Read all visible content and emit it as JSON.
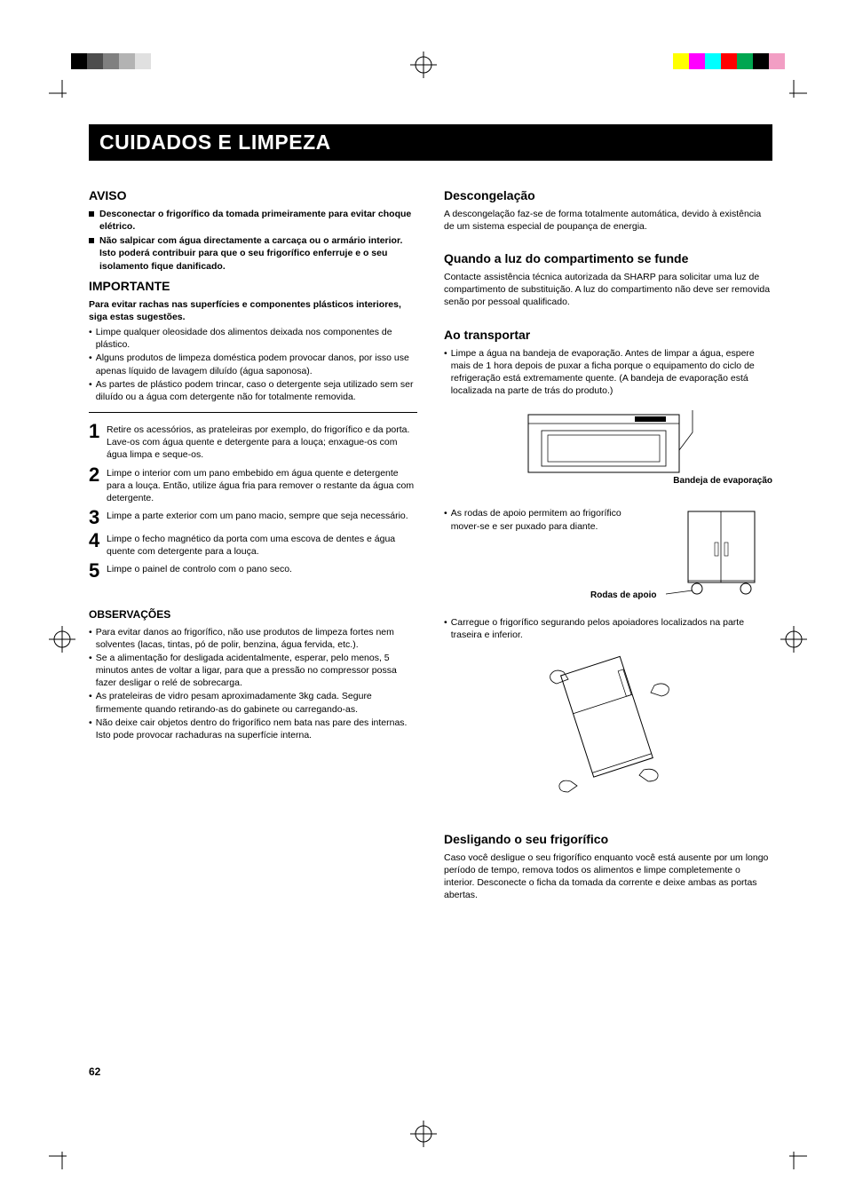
{
  "swatches_left": [
    "#000000",
    "#4d4d4d",
    "#808080",
    "#b3b3b3",
    "#e0e0e0"
  ],
  "swatches_right": [
    "#ffff00",
    "#ff00ff",
    "#00ffff",
    "#ff0000",
    "#00a650",
    "#000000",
    "#f29ec4"
  ],
  "title": "CUIDADOS E LIMPEZA",
  "page_number": "62",
  "left": {
    "aviso": {
      "heading": "AVISO",
      "items": [
        "Desconectar o frigorífico da tomada primeiramente para evitar choque elétrico.",
        "Não salpicar com água directamente a carcaça ou o armário interior. Isto poderá contribuir para que o seu frigorífico enferruje e o seu isolamento fique danificado."
      ]
    },
    "importante": {
      "heading": "IMPORTANTE",
      "intro": "Para evitar rachas nas superfícies e componentes plásticos interiores, siga estas sugestões.",
      "bullets": [
        "Limpe qualquer oleosidade dos alimentos deixada nos componentes de plástico.",
        "Alguns produtos de limpeza doméstica podem provocar danos, por isso use apenas líquido de lavagem diluído (água saponosa).",
        "As partes de plástico podem trincar, caso o detergente seja utilizado sem ser diluído ou a água com detergente não for totalmente removida."
      ]
    },
    "steps": [
      "Retire os acessórios, as prateleiras por exemplo, do frigorífico e da porta. Lave-os com água quente e detergente para a louça; enxague-os com água limpa e seque-os.",
      "Limpe o interior com um pano embebido em água quente e detergente para a louça. Então, utilize água fria para remover o restante da água com detergente.",
      "Limpe a parte exterior com um pano macio, sempre que seja necessário.",
      "Limpe o fecho magnético da porta com uma escova de dentes e água quente com detergente para a louça.",
      "Limpe o painel de controlo com o pano seco."
    ],
    "observacoes": {
      "heading": "OBSERVAÇÕES",
      "bullets": [
        "Para evitar danos ao frigorífico, não use produtos de limpeza fortes nem solventes (lacas, tintas, pó de polir, benzina, água fervida, etc.).",
        "Se a alimentação for desligada acidentalmente, esperar, pelo menos, 5 minutos antes de voltar a ligar, para que a pressão no compressor possa fazer desligar o relé de sobrecarga.",
        "As prateleiras de vidro pesam aproximadamente 3kg cada. Segure firmemente quando retirando-as do gabinete ou carregando-as.",
        "Não deixe cair objetos dentro do frigorífico nem bata nas pare des internas. Isto pode provocar rachaduras na superfície interna."
      ]
    }
  },
  "right": {
    "descongelacao": {
      "heading": "Descongelação",
      "text": "A descongelação faz-se de forma totalmente automática, devido à existência de um sistema especial de poupança de energia."
    },
    "luz": {
      "heading": "Quando a luz do compartimento se funde",
      "text": "Contacte assistência técnica autorizada da SHARP para solicitar uma luz de compartimento de substituição. A luz do compartimento não deve ser removida senão por pessoal qualificado."
    },
    "transportar": {
      "heading": "Ao transportar",
      "bullet1": "Limpe a água na bandeja de evaporação. Antes de limpar a água, espere mais de 1 hora depois de puxar a ficha porque o equipamento do ciclo de refrigeração está extremamente quente. (A bandeja de evaporação está localizada na parte de trás do produto.)",
      "fig1_caption": "Bandeja de evaporação",
      "bullet2": "As rodas de apoio permitem ao frigorífico mover-se e ser puxado para diante.",
      "fig2_caption": "Rodas de apoio",
      "bullet3": "Carregue o frigorífico segurando pelos apoiadores localizados na parte traseira e inferior."
    },
    "desligando": {
      "heading": "Desligando o seu frigorífico",
      "text": "Caso você desligue o seu frigorífico enquanto você está ausente por um longo período de tempo, remova todos os alimentos e limpe completemente o interior. Desconecte o ficha da tomada da corrente e deixe ambas as portas abertas."
    }
  }
}
